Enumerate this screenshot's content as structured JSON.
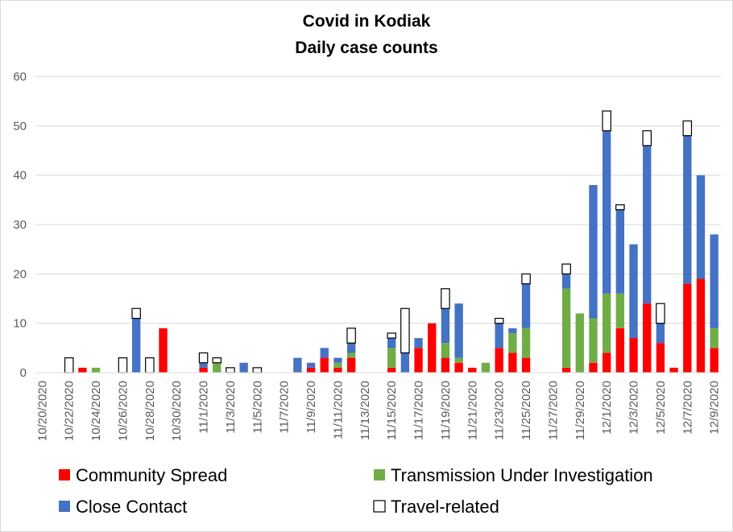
{
  "chart_data": {
    "type": "bar",
    "stacked": true,
    "title": "Covid in Kodiak",
    "subtitle": "Daily case counts",
    "xlabel": "",
    "ylabel": "",
    "ylim": [
      0,
      60
    ],
    "yticks": [
      0,
      10,
      20,
      30,
      40,
      50,
      60
    ],
    "grid": "horizontal",
    "legend_position": "bottom",
    "categories": [
      "10/20/2020",
      "10/21/2020",
      "10/22/2020",
      "10/23/2020",
      "10/24/2020",
      "10/25/2020",
      "10/26/2020",
      "10/27/2020",
      "10/28/2020",
      "10/29/2020",
      "10/30/2020",
      "10/31/2020",
      "11/1/2020",
      "11/2/2020",
      "11/3/2020",
      "11/4/2020",
      "11/5/2020",
      "11/6/2020",
      "11/7/2020",
      "11/8/2020",
      "11/9/2020",
      "11/10/2020",
      "11/11/2020",
      "11/12/2020",
      "11/13/2020",
      "11/14/2020",
      "11/15/2020",
      "11/16/2020",
      "11/17/2020",
      "11/18/2020",
      "11/19/2020",
      "11/20/2020",
      "11/21/2020",
      "11/22/2020",
      "11/23/2020",
      "11/24/2020",
      "11/25/2020",
      "11/26/2020",
      "11/27/2020",
      "11/28/2020",
      "11/29/2020",
      "11/30/2020",
      "12/1/2020",
      "12/2/2020",
      "12/3/2020",
      "12/4/2020",
      "12/5/2020",
      "12/6/2020",
      "12/7/2020",
      "12/8/2020",
      "12/9/2020"
    ],
    "xtick_labels": [
      "10/20/2020",
      "10/22/2020",
      "10/24/2020",
      "10/26/2020",
      "10/28/2020",
      "10/30/2020",
      "11/1/2020",
      "11/3/2020",
      "11/5/2020",
      "11/7/2020",
      "11/9/2020",
      "11/11/2020",
      "11/13/2020",
      "11/15/2020",
      "11/17/2020",
      "11/19/2020",
      "11/21/2020",
      "11/23/2020",
      "11/25/2020",
      "11/27/2020",
      "11/29/2020",
      "12/1/2020",
      "12/3/2020",
      "12/5/2020",
      "12/7/2020",
      "12/9/2020"
    ],
    "series": [
      {
        "name": "Community Spread",
        "color": "#ff0000",
        "values": [
          0,
          0,
          0,
          1,
          0,
          0,
          0,
          0,
          0,
          9,
          0,
          0,
          1,
          0,
          0,
          0,
          0,
          0,
          0,
          0,
          1,
          3,
          1,
          3,
          0,
          0,
          1,
          0,
          5,
          10,
          3,
          2,
          1,
          0,
          5,
          4,
          3,
          0,
          0,
          1,
          0,
          2,
          4,
          9,
          7,
          14,
          6,
          1,
          18,
          19,
          5
        ]
      },
      {
        "name": "Transmission Under Investigation",
        "color": "#70ad47",
        "values": [
          0,
          0,
          0,
          0,
          1,
          0,
          0,
          0,
          0,
          0,
          0,
          0,
          0,
          2,
          0,
          0,
          0,
          0,
          0,
          0,
          0,
          0,
          1,
          1,
          0,
          0,
          4,
          0,
          0,
          0,
          3,
          1,
          0,
          2,
          0,
          4,
          6,
          0,
          0,
          16,
          12,
          9,
          12,
          7,
          0,
          0,
          0,
          0,
          0,
          0,
          4
        ]
      },
      {
        "name": "Close Contact",
        "color": "#4472c4",
        "values": [
          0,
          0,
          0,
          0,
          0,
          0,
          0,
          11,
          0,
          0,
          0,
          0,
          1,
          0,
          0,
          2,
          0,
          0,
          0,
          3,
          1,
          2,
          1,
          2,
          0,
          0,
          2,
          4,
          2,
          0,
          7,
          11,
          0,
          0,
          5,
          1,
          9,
          0,
          0,
          3,
          0,
          27,
          33,
          17,
          19,
          32,
          4,
          0,
          30,
          21,
          19
        ]
      },
      {
        "name": "Travel-related",
        "color": "#ffffff",
        "values": [
          0,
          0,
          3,
          0,
          0,
          0,
          3,
          2,
          3,
          0,
          0,
          0,
          2,
          1,
          1,
          0,
          1,
          0,
          0,
          0,
          0,
          0,
          0,
          3,
          0,
          0,
          1,
          9,
          0,
          0,
          4,
          0,
          0,
          0,
          1,
          0,
          2,
          0,
          0,
          2,
          0,
          0,
          4,
          1,
          0,
          3,
          4,
          0,
          3,
          0,
          0
        ]
      }
    ]
  }
}
